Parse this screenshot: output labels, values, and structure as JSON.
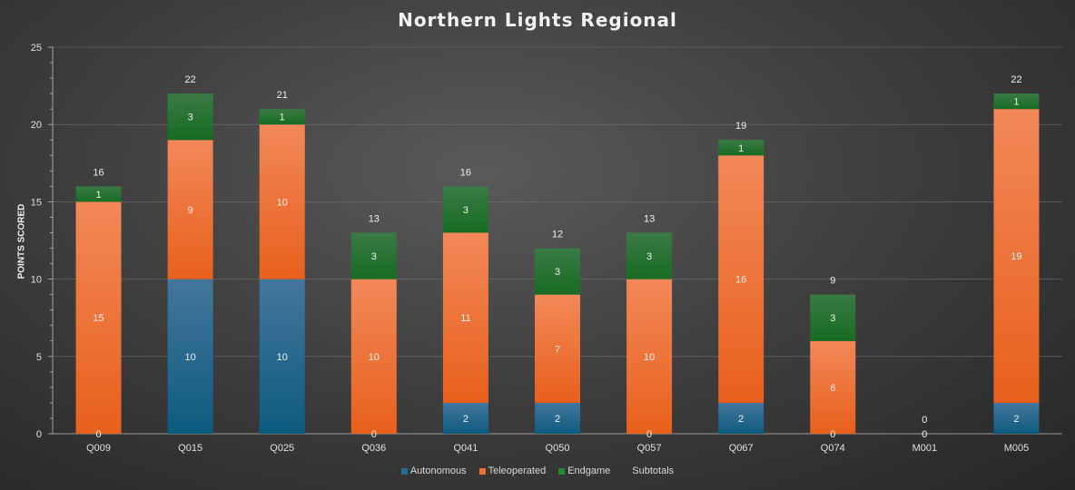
{
  "chart_data": {
    "type": "bar",
    "stacked": true,
    "title": "Northern Lights Regional",
    "ylabel": "POINTS SCORED",
    "xlabel": "",
    "ylim": [
      0,
      25
    ],
    "yticks": [
      0,
      5,
      10,
      15,
      20,
      25
    ],
    "grid": true,
    "legend_position": "bottom",
    "categories": [
      "Q009",
      "Q015",
      "Q025",
      "Q036",
      "Q041",
      "Q050",
      "Q057",
      "Q067",
      "Q074",
      "M001",
      "M005"
    ],
    "series": [
      {
        "name": "Autonomous",
        "color": "#1f6f94",
        "values": [
          0,
          10,
          10,
          0,
          2,
          2,
          0,
          2,
          0,
          0,
          2
        ]
      },
      {
        "name": "Teleoperated",
        "color": "#ef6f2e",
        "values": [
          15,
          9,
          10,
          10,
          11,
          7,
          10,
          16,
          6,
          0,
          19
        ]
      },
      {
        "name": "Endgame",
        "color": "#238a33",
        "values": [
          1,
          3,
          1,
          3,
          3,
          3,
          3,
          1,
          3,
          0,
          1
        ]
      }
    ],
    "subtotals": {
      "name": "Subtotals",
      "values": [
        16,
        22,
        21,
        13,
        16,
        12,
        13,
        19,
        9,
        0,
        22
      ]
    }
  }
}
